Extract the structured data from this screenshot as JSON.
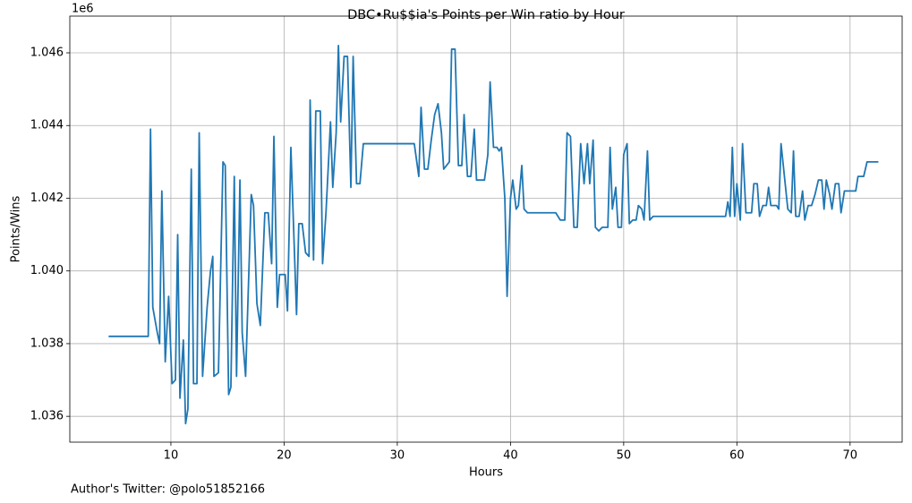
{
  "chart_data": {
    "type": "line",
    "title": "DBC•Ru$$ia's Points per Win ratio by Hour",
    "xlabel": "Hours",
    "ylabel": "Points/Wins",
    "y_offset_label": "1e6",
    "annotation": "Author's Twitter: @polo51852166",
    "color": "#1f77b4",
    "grid": true,
    "xlim": [
      1.07,
      74.6
    ],
    "ylim": [
      1.03529,
      1.04701
    ],
    "xticks": [
      10,
      20,
      30,
      40,
      50,
      60,
      70
    ],
    "yticks": [
      1.036,
      1.038,
      {
        "value": 1.04,
        "label": "1.040"
      },
      1.042,
      1.044,
      1.046
    ],
    "x": [
      4.5,
      8.0,
      8.2,
      8.4,
      8.8,
      9.0,
      9.2,
      9.5,
      9.8,
      10.1,
      10.4,
      10.6,
      10.8,
      11.1,
      11.3,
      11.5,
      11.8,
      12.0,
      12.3,
      12.5,
      12.8,
      13.2,
      13.5,
      13.7,
      13.8,
      14.2,
      14.6,
      14.8,
      15.1,
      15.3,
      15.6,
      15.8,
      16.1,
      16.3,
      16.6,
      17.1,
      17.3,
      17.6,
      17.9,
      18.3,
      18.6,
      18.9,
      19.1,
      19.4,
      19.6,
      20.1,
      20.3,
      20.6,
      21.1,
      21.3,
      21.6,
      21.9,
      22.2,
      22.3,
      22.6,
      22.8,
      23.2,
      23.4,
      23.7,
      24.1,
      24.3,
      24.6,
      24.8,
      25.0,
      25.3,
      25.6,
      25.9,
      26.1,
      26.4,
      26.7,
      27.0,
      31.5,
      31.9,
      32.1,
      32.4,
      32.7,
      33.0,
      33.3,
      33.6,
      33.9,
      34.1,
      34.6,
      34.8,
      35.1,
      35.4,
      35.7,
      35.9,
      36.2,
      36.5,
      36.8,
      37.0,
      37.3,
      37.7,
      38.0,
      38.2,
      38.5,
      38.8,
      39.0,
      39.2,
      39.5,
      39.7,
      40.0,
      40.2,
      40.5,
      40.7,
      41.0,
      41.2,
      41.5,
      44.0,
      44.4,
      44.8,
      45.0,
      45.3,
      45.6,
      45.9,
      46.2,
      46.5,
      46.8,
      47.0,
      47.3,
      47.5,
      47.8,
      48.1,
      48.6,
      48.8,
      49.0,
      49.3,
      49.5,
      49.8,
      50.0,
      50.3,
      50.5,
      50.8,
      51.1,
      51.3,
      51.6,
      51.8,
      52.1,
      52.3,
      52.6,
      59.0,
      59.2,
      59.4,
      59.6,
      59.8,
      60.0,
      60.3,
      60.5,
      60.8,
      61.3,
      61.5,
      61.8,
      62.0,
      62.3,
      62.6,
      62.8,
      63.0,
      63.5,
      63.7,
      63.9,
      64.2,
      64.5,
      64.8,
      65.0,
      65.2,
      65.5,
      65.8,
      66.0,
      66.3,
      66.6,
      66.9,
      67.2,
      67.5,
      67.7,
      67.9,
      68.2,
      68.4,
      68.7,
      69.0,
      69.2,
      69.5,
      70.5,
      70.7,
      71.2,
      71.5,
      72.5
    ],
    "values": [
      1.0382,
      1.0382,
      1.0439,
      1.039,
      1.0383,
      1.038,
      1.0422,
      1.0375,
      1.0393,
      1.0369,
      1.037,
      1.041,
      1.0365,
      1.0381,
      1.0358,
      1.0362,
      1.0428,
      1.0369,
      1.0369,
      1.0438,
      1.0371,
      1.039,
      1.04,
      1.0404,
      1.0371,
      1.0372,
      1.043,
      1.0429,
      1.0366,
      1.0368,
      1.0426,
      1.0371,
      1.0425,
      1.0383,
      1.0371,
      1.0421,
      1.0418,
      1.0391,
      1.0385,
      1.0416,
      1.0416,
      1.0402,
      1.0437,
      1.039,
      1.0399,
      1.0399,
      1.0389,
      1.0434,
      1.0388,
      1.0413,
      1.0413,
      1.0405,
      1.0404,
      1.0447,
      1.0403,
      1.0444,
      1.0444,
      1.0402,
      1.0416,
      1.0441,
      1.0423,
      1.0438,
      1.0462,
      1.0441,
      1.0459,
      1.0459,
      1.0423,
      1.0459,
      1.0424,
      1.0424,
      1.0435,
      1.0435,
      1.0426,
      1.0445,
      1.0428,
      1.0428,
      1.0436,
      1.0443,
      1.0446,
      1.0438,
      1.0428,
      1.043,
      1.0461,
      1.0461,
      1.0429,
      1.0429,
      1.0443,
      1.0426,
      1.0426,
      1.0439,
      1.0425,
      1.0425,
      1.0425,
      1.0432,
      1.0452,
      1.0434,
      1.0434,
      1.0433,
      1.0434,
      1.042,
      1.0393,
      1.042,
      1.0425,
      1.0417,
      1.0418,
      1.0429,
      1.0417,
      1.0416,
      1.0416,
      1.0414,
      1.0414,
      1.0438,
      1.0437,
      1.0412,
      1.0412,
      1.0435,
      1.0424,
      1.0435,
      1.0424,
      1.0436,
      1.0412,
      1.0411,
      1.0412,
      1.0412,
      1.0434,
      1.0417,
      1.0423,
      1.0412,
      1.0412,
      1.0432,
      1.0435,
      1.0413,
      1.0414,
      1.0414,
      1.0418,
      1.0417,
      1.0414,
      1.0433,
      1.0414,
      1.0415,
      1.0415,
      1.0419,
      1.0415,
      1.0434,
      1.0415,
      1.0424,
      1.0414,
      1.0435,
      1.0416,
      1.0416,
      1.0424,
      1.0424,
      1.0415,
      1.0418,
      1.0418,
      1.0423,
      1.0418,
      1.0418,
      1.0417,
      1.0435,
      1.0426,
      1.0417,
      1.0416,
      1.0433,
      1.0415,
      1.0415,
      1.0422,
      1.0414,
      1.0418,
      1.0418,
      1.0421,
      1.0425,
      1.0425,
      1.0417,
      1.0425,
      1.0421,
      1.0417,
      1.0424,
      1.0424,
      1.0416,
      1.0422,
      1.0422,
      1.0426,
      1.0426,
      1.043,
      1.043
    ]
  }
}
